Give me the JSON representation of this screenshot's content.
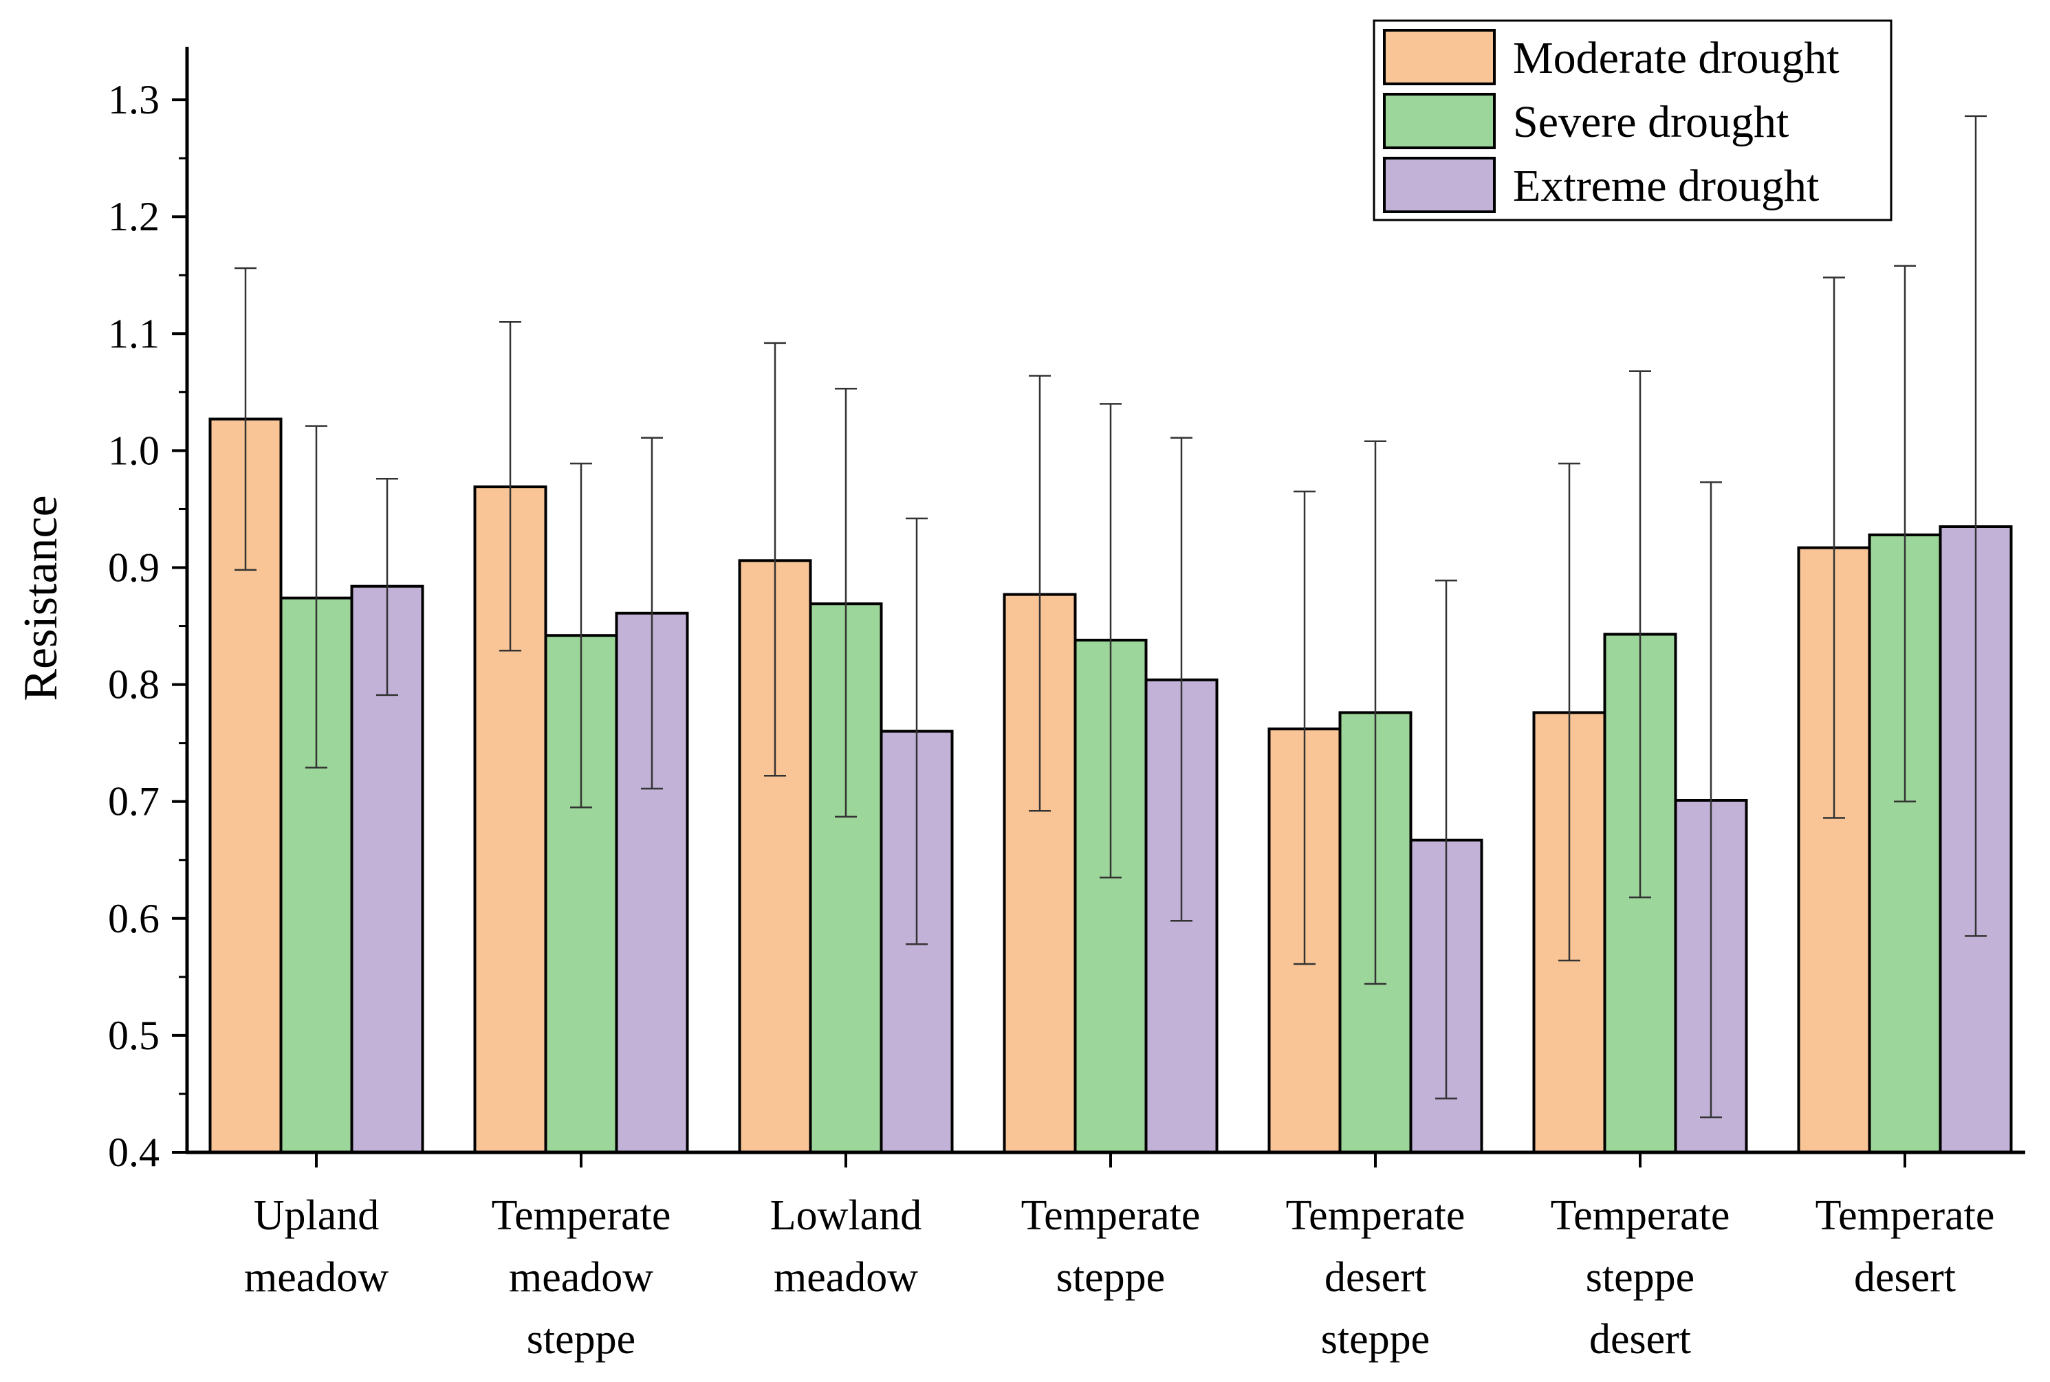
{
  "chart_data": {
    "type": "bar",
    "title": "",
    "xlabel": "",
    "ylabel": "Resistance",
    "ylim": [
      0.4,
      1.35
    ],
    "yticks": [
      "0.4",
      "0.5",
      "0.6",
      "0.7",
      "0.8",
      "0.9",
      "1.0",
      "1.1",
      "1.2",
      "1.3"
    ],
    "grid": false,
    "legend_position": "top-right",
    "categories": [
      [
        "Upland",
        "meadow"
      ],
      [
        "Temperate",
        "meadow",
        "steppe"
      ],
      [
        "Lowland",
        "meadow"
      ],
      [
        "Temperate",
        "steppe"
      ],
      [
        "Temperate",
        "desert",
        "steppe"
      ],
      [
        "Temperate",
        "steppe",
        "desert"
      ],
      [
        "Temperate",
        "desert"
      ]
    ],
    "series": [
      {
        "name": "Moderate drought",
        "color": "#f9c596",
        "values": [
          1.027,
          0.969,
          0.906,
          0.877,
          0.762,
          0.776,
          0.917
        ],
        "err_low": [
          0.898,
          0.829,
          0.722,
          0.692,
          0.561,
          0.564,
          0.686
        ],
        "err_high": [
          1.156,
          1.11,
          1.092,
          1.064,
          0.965,
          0.989,
          1.148
        ]
      },
      {
        "name": "Severe drought",
        "color": "#9cd69a",
        "values": [
          0.874,
          0.842,
          0.869,
          0.838,
          0.776,
          0.843,
          0.928
        ],
        "err_low": [
          0.729,
          0.695,
          0.687,
          0.635,
          0.544,
          0.618,
          0.7
        ],
        "err_high": [
          1.021,
          0.989,
          1.053,
          1.04,
          1.008,
          1.068,
          1.158
        ]
      },
      {
        "name": "Extreme drought",
        "color": "#c3b2d8",
        "values": [
          0.884,
          0.861,
          0.76,
          0.804,
          0.667,
          0.701,
          0.935
        ],
        "err_low": [
          0.791,
          0.711,
          0.578,
          0.598,
          0.446,
          0.43,
          0.585
        ],
        "err_high": [
          0.976,
          1.011,
          0.942,
          1.011,
          0.889,
          0.973,
          1.286
        ]
      }
    ]
  }
}
